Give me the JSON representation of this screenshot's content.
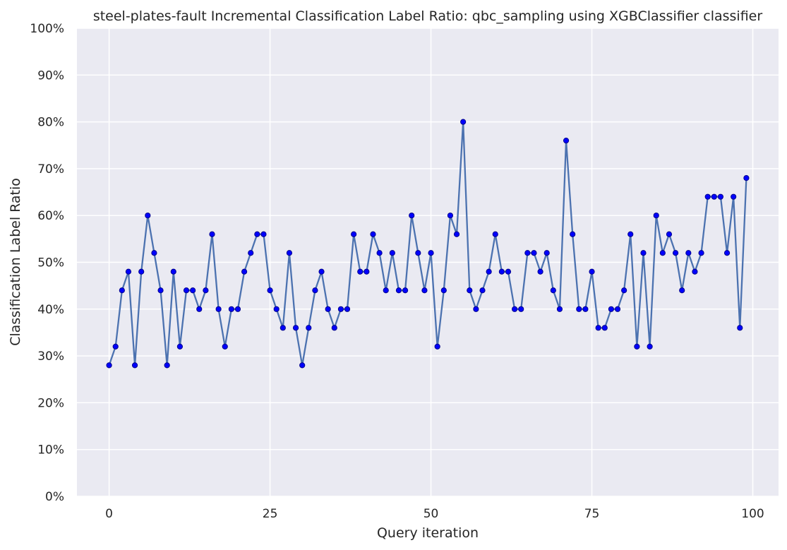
{
  "chart_data": {
    "type": "line",
    "title": "steel-plates-fault Incremental Classification Label Ratio: qbc_sampling using XGBClassifier classifier",
    "xlabel": "Query iteration",
    "ylabel": "Classification Label Ratio",
    "xlim": [
      -5,
      104
    ],
    "ylim": [
      0,
      1
    ],
    "x_ticks": [
      0,
      25,
      50,
      75,
      100
    ],
    "x_tick_labels": [
      "0",
      "25",
      "50",
      "75",
      "100"
    ],
    "y_ticks": [
      0,
      0.1,
      0.2,
      0.3,
      0.4,
      0.5,
      0.6,
      0.7,
      0.8,
      0.9,
      1.0
    ],
    "y_tick_labels": [
      "0%",
      "10%",
      "20%",
      "30%",
      "40%",
      "50%",
      "60%",
      "70%",
      "80%",
      "90%",
      "100%"
    ],
    "grid": true,
    "colors": {
      "background": "#eaeaf2",
      "grid": "#ffffff",
      "line": "#4c72b0",
      "marker": "#0000ff",
      "marker_edge": "#00008b"
    },
    "series": [
      {
        "x": [
          0,
          1,
          2,
          3,
          4,
          5,
          6,
          7,
          8,
          9,
          10,
          11,
          12,
          13,
          14,
          15,
          16,
          17,
          18,
          19,
          20,
          21,
          22,
          23,
          24,
          25,
          26,
          27,
          28,
          29,
          30,
          31,
          32,
          33,
          34,
          35,
          36,
          37,
          38,
          39,
          40,
          41,
          42,
          43,
          44,
          45,
          46,
          47,
          48,
          49,
          50,
          51,
          52,
          53,
          54,
          55,
          56,
          57,
          58,
          59,
          60,
          61,
          62,
          63,
          64,
          65,
          66,
          67,
          68,
          69,
          70,
          71,
          72,
          73,
          74,
          75,
          76,
          77,
          78,
          79,
          80,
          81,
          82,
          83,
          84,
          85,
          86,
          87,
          88,
          89,
          90,
          91,
          92,
          93,
          94,
          95,
          96,
          97,
          98,
          99
        ],
        "values": [
          0.28,
          0.32,
          0.44,
          0.48,
          0.28,
          0.48,
          0.6,
          0.52,
          0.44,
          0.28,
          0.48,
          0.32,
          0.44,
          0.44,
          0.4,
          0.44,
          0.56,
          0.4,
          0.32,
          0.4,
          0.4,
          0.48,
          0.52,
          0.56,
          0.56,
          0.44,
          0.4,
          0.36,
          0.52,
          0.36,
          0.28,
          0.36,
          0.44,
          0.48,
          0.4,
          0.36,
          0.4,
          0.4,
          0.56,
          0.48,
          0.48,
          0.56,
          0.52,
          0.44,
          0.52,
          0.44,
          0.44,
          0.6,
          0.52,
          0.44,
          0.52,
          0.32,
          0.44,
          0.6,
          0.56,
          0.8,
          0.44,
          0.4,
          0.44,
          0.48,
          0.56,
          0.48,
          0.48,
          0.4,
          0.4,
          0.52,
          0.52,
          0.48,
          0.52,
          0.44,
          0.4,
          0.76,
          0.56,
          0.4,
          0.4,
          0.48,
          0.36,
          0.36,
          0.4,
          0.4,
          0.44,
          0.56,
          0.32,
          0.52,
          0.32,
          0.6,
          0.52,
          0.56,
          0.52,
          0.44,
          0.52,
          0.48,
          0.52,
          0.64,
          0.64,
          0.64,
          0.52,
          0.64,
          0.36,
          0.68
        ]
      }
    ]
  }
}
